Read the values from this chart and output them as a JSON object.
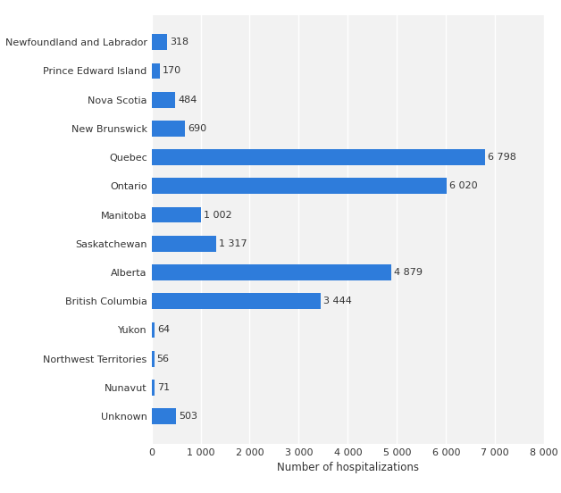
{
  "categories": [
    "Newfoundland and Labrador",
    "Prince Edward Island",
    "Nova Scotia",
    "New Brunswick",
    "Quebec",
    "Ontario",
    "Manitoba",
    "Saskatchewan",
    "Alberta",
    "British Columbia",
    "Yukon",
    "Northwest Territories",
    "Nunavut",
    "Unknown"
  ],
  "values": [
    318,
    170,
    484,
    690,
    6798,
    6020,
    1002,
    1317,
    4879,
    3444,
    64,
    56,
    71,
    503
  ],
  "bar_color": "#2e7cdb",
  "xlabel": "Number of hospitalizations",
  "background_color": "#ffffff",
  "plot_bg_color": "#f2f2f2",
  "grid_color": "#ffffff",
  "label_color": "#333333",
  "value_labels": [
    "318",
    "170",
    "484",
    "690",
    "6 798",
    "6 020",
    "1 002",
    "1 317",
    "4 879",
    "3 444",
    "64",
    "56",
    "71",
    "503"
  ],
  "xlim": [
    0,
    8000
  ],
  "xticks": [
    0,
    1000,
    2000,
    3000,
    4000,
    5000,
    6000,
    7000,
    8000
  ],
  "xtick_labels": [
    "0",
    "1 000",
    "2 000",
    "3 000",
    "4 000",
    "5 000",
    "6 000",
    "7 000",
    "8 000"
  ],
  "figsize": [
    6.28,
    5.52
  ],
  "dpi": 100
}
